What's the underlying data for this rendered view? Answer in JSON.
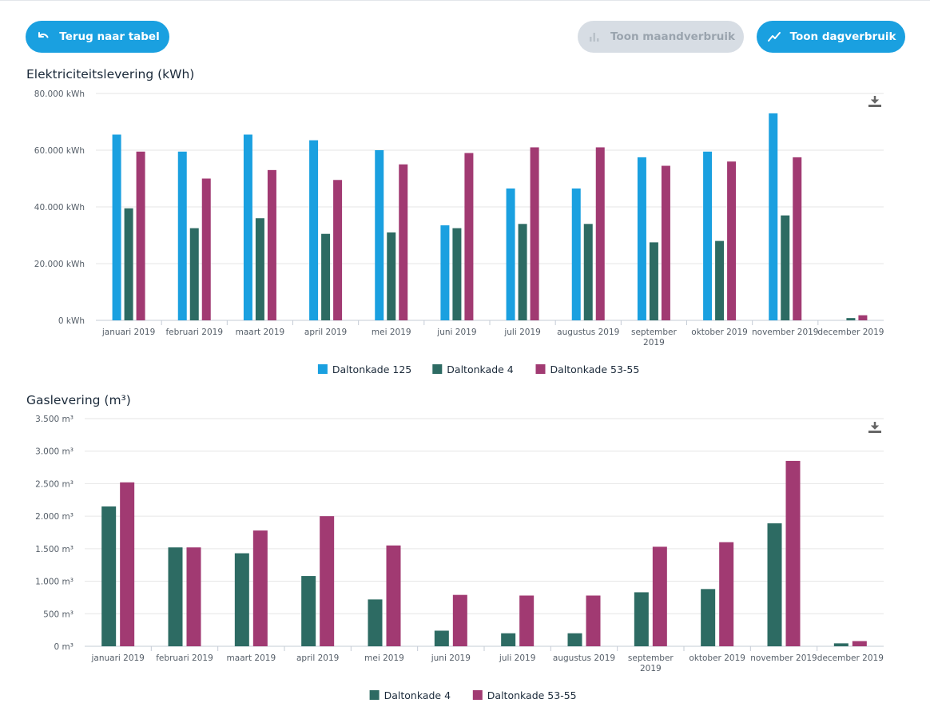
{
  "toolbar": {
    "back_label": "Terug naar tabel",
    "month_label": "Toon maandverbruik",
    "day_label": "Toon dagverbruik"
  },
  "icons": {
    "back": "undo-arrow-icon",
    "month": "bar-chart-icon",
    "day": "line-chart-icon",
    "download": "download-icon"
  },
  "colors": {
    "primary_button": "#1aa0e0",
    "disabled_button": "#d7dde4",
    "series_125": "#1aa0e0",
    "series_4": "#2d6b63",
    "series_5355": "#a13a72"
  },
  "chart_data": [
    {
      "type": "bar",
      "title": "Elektriciteitslevering (kWh)",
      "categories": [
        "januari 2019",
        "februari 2019",
        "maart 2019",
        "april 2019",
        "mei 2019",
        "juni 2019",
        "juli 2019",
        "augustus 2019",
        "september 2019",
        "oktober 2019",
        "november 2019",
        "december 2019"
      ],
      "yticks": [
        "0 kWh",
        "20.000 kWh",
        "40.000 kWh",
        "60.000 kWh",
        "80.000 kWh"
      ],
      "ylim": [
        0,
        80000
      ],
      "grid": true,
      "legend": "bottom-center",
      "series": [
        {
          "name": "Daltonkade 125",
          "color": "#1aa0e0",
          "values": [
            65500,
            59500,
            65500,
            63500,
            60000,
            33500,
            46500,
            46500,
            57500,
            59500,
            73000,
            0
          ]
        },
        {
          "name": "Daltonkade 4",
          "color": "#2d6b63",
          "values": [
            39500,
            32500,
            36000,
            30500,
            31000,
            32500,
            34000,
            34000,
            27500,
            28000,
            37000,
            800
          ]
        },
        {
          "name": "Daltonkade 53-55",
          "color": "#a13a72",
          "values": [
            59500,
            50000,
            53000,
            49500,
            55000,
            59000,
            61000,
            61000,
            54500,
            56000,
            57500,
            1800
          ]
        }
      ]
    },
    {
      "type": "bar",
      "title": "Gaslevering (m³)",
      "categories": [
        "januari 2019",
        "februari 2019",
        "maart 2019",
        "april 2019",
        "mei 2019",
        "juni 2019",
        "juli 2019",
        "augustus 2019",
        "september 2019",
        "oktober 2019",
        "november 2019",
        "december 2019"
      ],
      "yticks": [
        "0 m³",
        "500 m³",
        "1.000 m³",
        "1.500 m³",
        "2.000 m³",
        "2.500 m³",
        "3.000 m³",
        "3.500 m³"
      ],
      "ylim": [
        0,
        3500
      ],
      "grid": true,
      "legend": "bottom-center",
      "series": [
        {
          "name": "Daltonkade 4",
          "color": "#2d6b63",
          "values": [
            2150,
            1520,
            1430,
            1080,
            720,
            240,
            200,
            200,
            830,
            880,
            1890,
            45
          ]
        },
        {
          "name": "Daltonkade 53-55",
          "color": "#a13a72",
          "values": [
            2520,
            1520,
            1780,
            2000,
            1550,
            790,
            780,
            780,
            1530,
            1600,
            2850,
            80
          ]
        }
      ]
    }
  ]
}
